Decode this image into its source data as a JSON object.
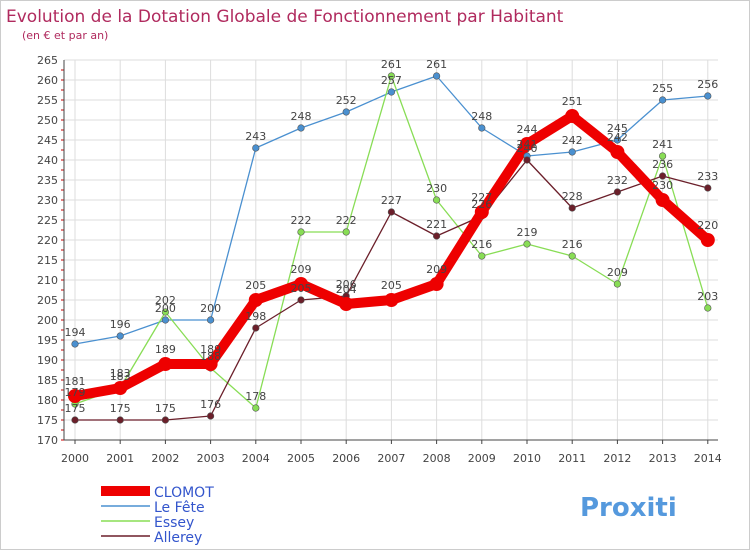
{
  "colors": {
    "title": "#b02a5e",
    "legend_text": "#3355cc",
    "grid": "#dddddd",
    "axis": "#444444",
    "label": "#444444",
    "border": "#cccccc",
    "minor_tick": "#cc0000"
  },
  "brand": {
    "text": "Proxiti"
  },
  "chart_data": {
    "type": "line",
    "title": "Evolution de la Dotation Globale de Fonctionnement par Habitant",
    "subtitle": "(en € et par an)",
    "xlabel": "",
    "ylabel": "",
    "x": [
      2000,
      2001,
      2002,
      2003,
      2004,
      2005,
      2006,
      2007,
      2008,
      2009,
      2010,
      2011,
      2012,
      2013,
      2014
    ],
    "ylim": [
      170,
      265
    ],
    "yticks": [
      170,
      175,
      180,
      185,
      190,
      195,
      200,
      205,
      210,
      215,
      220,
      225,
      230,
      235,
      240,
      245,
      250,
      255,
      260,
      265
    ],
    "grid": true,
    "legend_position": "bottom-left",
    "series": [
      {
        "name": "CLOMOT",
        "color": "#ee0000",
        "width": "thick",
        "values": [
          181,
          183,
          189,
          189,
          205,
          209,
          204,
          205,
          209,
          227,
          244,
          251,
          242,
          230,
          220
        ]
      },
      {
        "name": "Le Fête",
        "color": "#4a90d0",
        "width": "thin",
        "values": [
          194,
          196,
          200,
          200,
          243,
          248,
          252,
          257,
          261,
          248,
          241,
          242,
          245,
          255,
          256
        ]
      },
      {
        "name": "Essey",
        "color": "#88dd55",
        "width": "thin",
        "values": [
          179,
          183,
          202,
          188,
          178,
          222,
          222,
          261,
          230,
          216,
          219,
          216,
          209,
          241,
          203
        ]
      },
      {
        "name": "Allerey",
        "color": "#6b1f2a",
        "width": "thin",
        "values": [
          175,
          175,
          175,
          176,
          198,
          205,
          206,
          227,
          221,
          226,
          240,
          228,
          232,
          236,
          233
        ]
      }
    ]
  }
}
